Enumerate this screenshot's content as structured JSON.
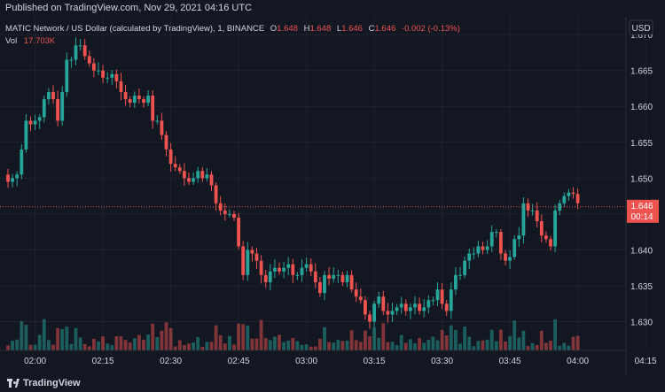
{
  "header": {
    "published": "Published on TradingView.com, Nov 29, 2021 04:16 UTC"
  },
  "legend": {
    "symbol": "MATIC Network / US Dollar (calculated by TradingView), 1, BINANCE",
    "o_label": "O",
    "o_value": "1.648",
    "h_label": "H",
    "h_value": "1.648",
    "l_label": "L",
    "l_value": "1.646",
    "c_label": "C",
    "c_value": "1.646",
    "change": "-0.002 (-0.13%)",
    "vol_label": "Vol",
    "vol_value": "17.703K"
  },
  "price_scale": {
    "currency": "USD",
    "last_price": "1.646",
    "countdown": "00:14"
  },
  "footer": {
    "brand": "TradingView"
  },
  "colors": {
    "up": "#26a69a",
    "down": "#ef5350",
    "background": "#131722",
    "grid": "#1e222d",
    "text": "#d1d4dc"
  },
  "chart_data": {
    "type": "candlestick",
    "ylim": [
      1.626,
      1.671
    ],
    "y_ticks": [
      "1.670",
      "1.665",
      "1.660",
      "1.655",
      "1.650",
      "1.645",
      "1.640",
      "1.635",
      "1.630"
    ],
    "x_ticks": [
      "02:00",
      "02:15",
      "02:30",
      "02:45",
      "03:00",
      "03:15",
      "03:30",
      "03:45",
      "04:00",
      "04:15"
    ],
    "start_time": "01:54",
    "interval_minutes": 1,
    "closes": [
      1.6495,
      1.65,
      1.6505,
      1.654,
      1.658,
      1.6575,
      1.658,
      1.6585,
      1.661,
      1.662,
      1.661,
      1.658,
      1.662,
      1.6665,
      1.6665,
      1.6685,
      1.6685,
      1.667,
      1.666,
      1.665,
      1.665,
      1.664,
      1.664,
      1.6645,
      1.6635,
      1.662,
      1.661,
      1.6605,
      1.6615,
      1.661,
      1.6605,
      1.6615,
      1.658,
      1.658,
      1.656,
      1.654,
      1.652,
      1.6515,
      1.651,
      1.65,
      1.6495,
      1.65,
      1.651,
      1.65,
      1.6505,
      1.649,
      1.6465,
      1.6455,
      1.645,
      1.645,
      1.6445,
      1.6405,
      1.6365,
      1.64,
      1.6395,
      1.6385,
      1.6365,
      1.6355,
      1.637,
      1.6375,
      1.637,
      1.6375,
      1.638,
      1.6365,
      1.6365,
      1.6375,
      1.638,
      1.637,
      1.6355,
      1.634,
      1.6365,
      1.636,
      1.6365,
      1.6365,
      1.6355,
      1.6365,
      1.6345,
      1.6335,
      1.633,
      1.631,
      1.63,
      1.6325,
      1.6335,
      1.6315,
      1.631,
      1.6315,
      1.632,
      1.6325,
      1.6315,
      1.632,
      1.6325,
      1.6315,
      1.632,
      1.633,
      1.633,
      1.6345,
      1.6325,
      1.6315,
      1.6345,
      1.6365,
      1.6365,
      1.6385,
      1.6395,
      1.6395,
      1.6405,
      1.64,
      1.6405,
      1.6425,
      1.6425,
      1.6395,
      1.6385,
      1.639,
      1.6415,
      1.642,
      1.6465,
      1.6455,
      1.6455,
      1.644,
      1.642,
      1.6415,
      1.6405,
      1.6455,
      1.6465,
      1.6475,
      1.648,
      1.6478,
      1.6465
    ],
    "opens": [
      1.6505,
      1.6495,
      1.65,
      1.6505,
      1.654,
      1.658,
      1.6575,
      1.658,
      1.6585,
      1.661,
      1.662,
      1.661,
      1.658,
      1.662,
      1.6665,
      1.6665,
      1.6685,
      1.6685,
      1.667,
      1.666,
      1.665,
      1.665,
      1.664,
      1.664,
      1.6645,
      1.6635,
      1.662,
      1.661,
      1.6605,
      1.6615,
      1.661,
      1.6605,
      1.6615,
      1.658,
      1.658,
      1.656,
      1.654,
      1.652,
      1.6515,
      1.651,
      1.65,
      1.6495,
      1.65,
      1.651,
      1.65,
      1.6505,
      1.649,
      1.6465,
      1.6455,
      1.645,
      1.645,
      1.6445,
      1.6405,
      1.6365,
      1.64,
      1.6395,
      1.6385,
      1.6365,
      1.6355,
      1.637,
      1.6375,
      1.637,
      1.6375,
      1.638,
      1.6365,
      1.6365,
      1.6375,
      1.638,
      1.637,
      1.6355,
      1.634,
      1.6365,
      1.636,
      1.6365,
      1.6365,
      1.6355,
      1.6365,
      1.6345,
      1.6335,
      1.633,
      1.631,
      1.63,
      1.6325,
      1.6335,
      1.6315,
      1.631,
      1.6315,
      1.632,
      1.6325,
      1.6315,
      1.632,
      1.6325,
      1.6315,
      1.632,
      1.633,
      1.633,
      1.6345,
      1.6325,
      1.6315,
      1.6345,
      1.6365,
      1.6365,
      1.6385,
      1.6395,
      1.6395,
      1.6405,
      1.64,
      1.6405,
      1.6425,
      1.6425,
      1.6395,
      1.6385,
      1.639,
      1.6415,
      1.642,
      1.6465,
      1.6455,
      1.6455,
      1.644,
      1.642,
      1.6415,
      1.6405,
      1.6455,
      1.6465,
      1.6475,
      1.648,
      1.6478
    ]
  }
}
